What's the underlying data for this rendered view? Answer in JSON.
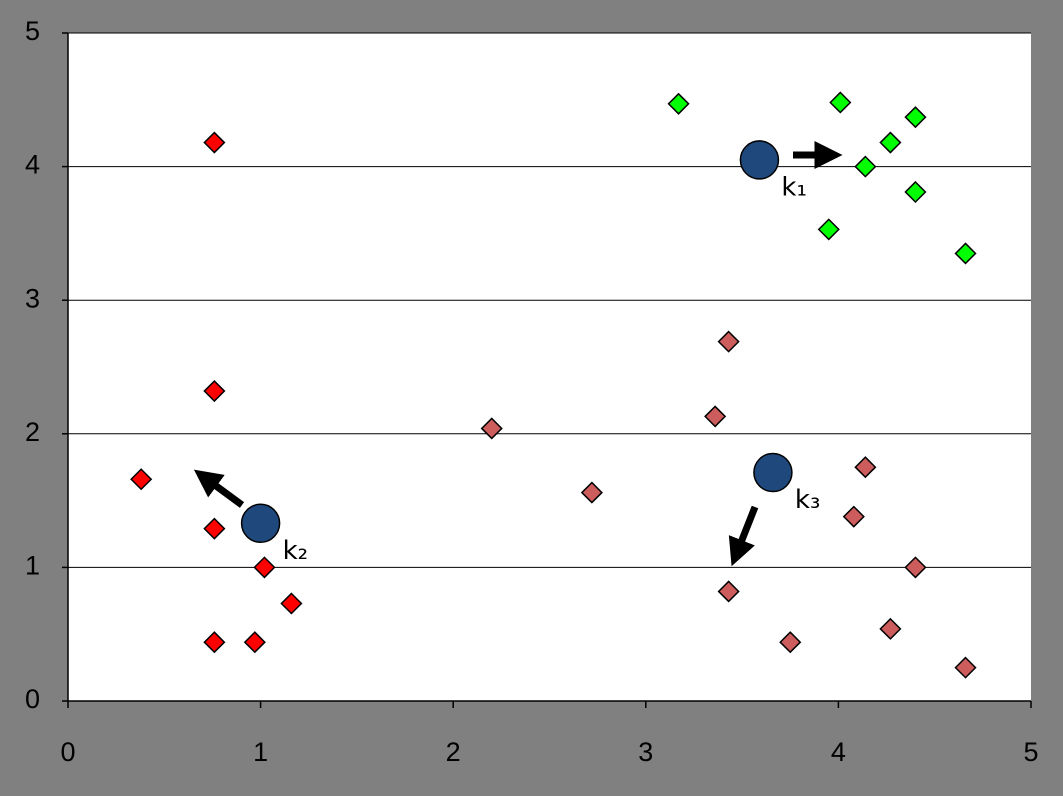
{
  "chart_data": {
    "type": "scatter",
    "xlim": [
      0,
      5
    ],
    "xticks": [
      0,
      1,
      2,
      3,
      4,
      5
    ],
    "ylim": [
      0,
      5
    ],
    "yticks": [
      0,
      1,
      2,
      3,
      4,
      5
    ],
    "grid": true,
    "series": [
      {
        "color": "#00ff00",
        "marker": "diamond",
        "x": [
          3.17,
          4.01,
          4.4,
          4.27,
          4.14,
          4.4,
          3.95,
          4.66
        ],
        "values": [
          4.47,
          4.48,
          4.37,
          4.18,
          4.0,
          3.81,
          3.53,
          3.35
        ]
      },
      {
        "color": "#ff0000",
        "marker": "diamond",
        "x": [
          0.76,
          0.76,
          0.38,
          0.76,
          1.02,
          1.16,
          0.76,
          0.97
        ],
        "values": [
          4.18,
          2.32,
          1.66,
          1.29,
          1.0,
          0.73,
          0.44,
          0.44
        ]
      },
      {
        "color": "#cd5c5c",
        "marker": "diamond",
        "x": [
          3.43,
          2.2,
          3.36,
          2.72,
          4.14,
          4.08,
          4.4,
          3.43,
          3.75,
          4.27,
          4.66
        ],
        "values": [
          2.69,
          2.04,
          2.13,
          1.56,
          1.75,
          1.38,
          1.0,
          0.82,
          0.44,
          0.54,
          0.25
        ]
      },
      {
        "color": "#1f497d",
        "marker": "circle",
        "x": [
          3.59,
          1.0,
          3.66
        ],
        "values": [
          4.05,
          1.33,
          1.71
        ],
        "labels": [
          "k₁",
          "k₂",
          "k₃"
        ]
      }
    ]
  }
}
